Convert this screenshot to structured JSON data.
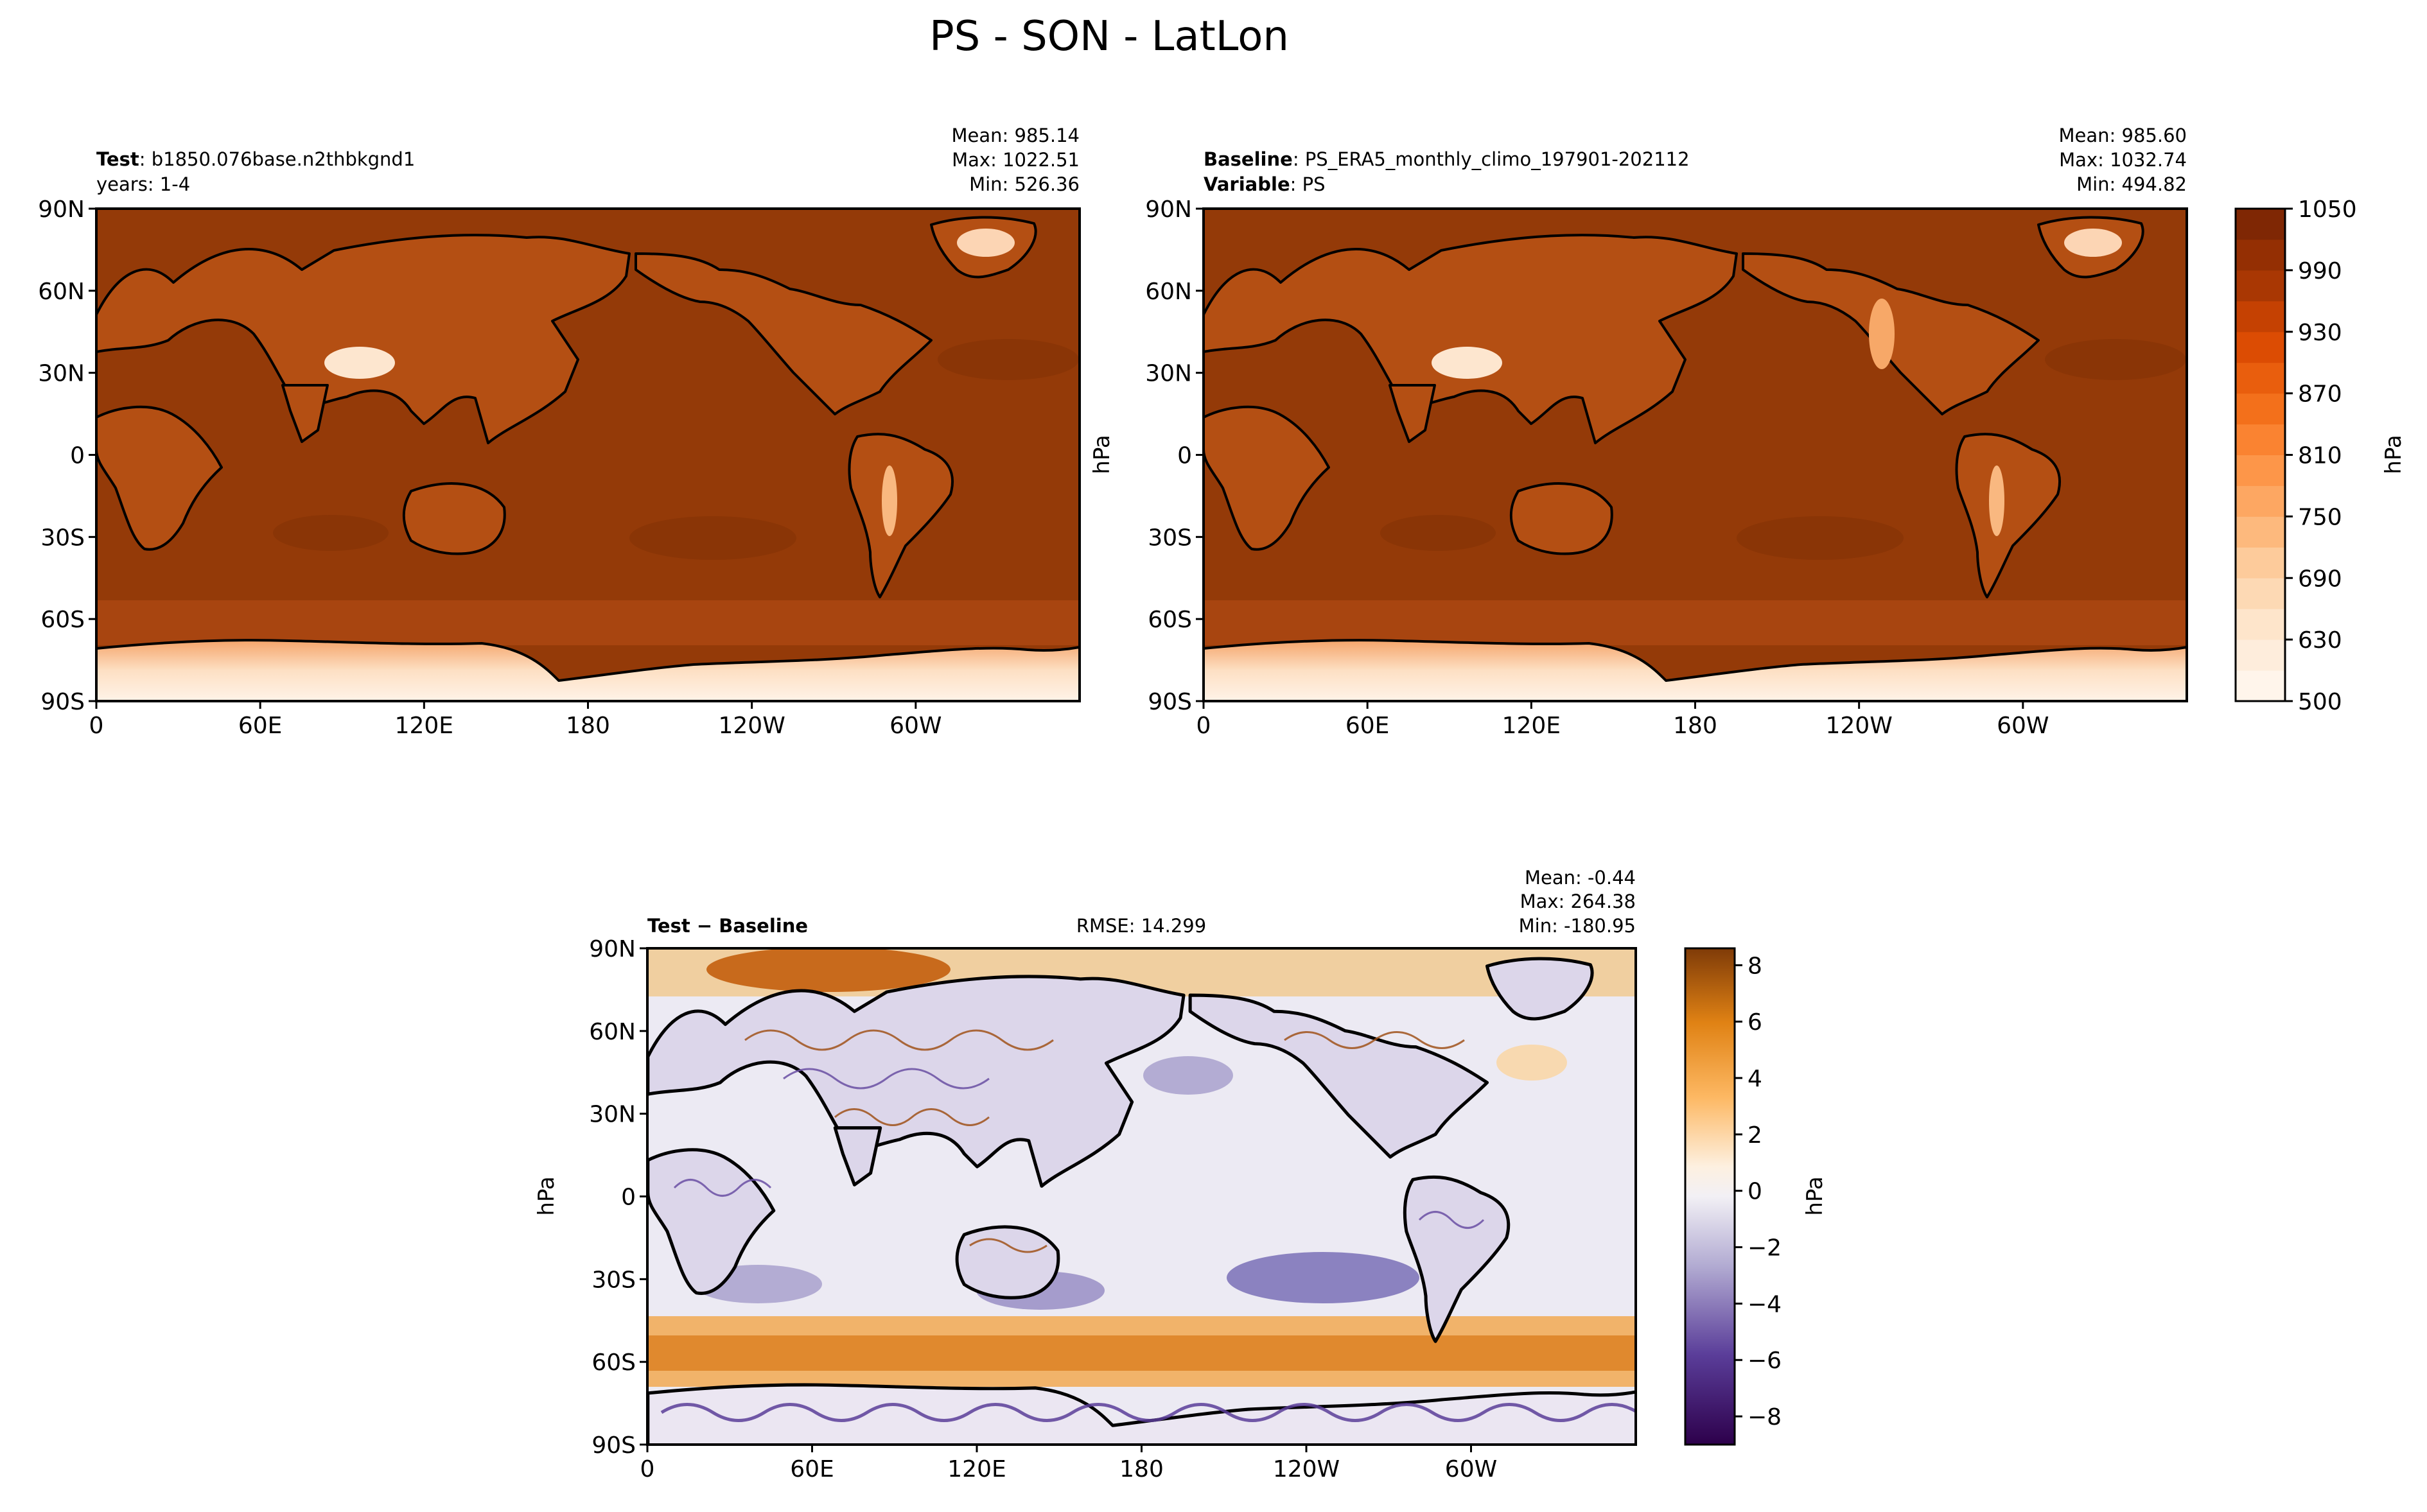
{
  "figure": {
    "title": "PS - SON - LatLon"
  },
  "chart_data": [
    {
      "type": "heatmap",
      "panel": "test",
      "label_key": "Test",
      "label_value": "b1850.076base.n2thbkgnd1",
      "label2_text": "years: 1-4",
      "stats": [
        "Mean: 985.14",
        "Max: 1022.51",
        "Min: 526.36"
      ],
      "variable": "PS",
      "units": "hPa",
      "season": "SON",
      "x_tick_labels": [
        "0",
        "60E",
        "120E",
        "180",
        "120W",
        "60W"
      ],
      "y_tick_labels": [
        "90N",
        "60N",
        "30N",
        "0",
        "30S",
        "60S",
        "90S"
      ],
      "lon_ticks": [
        0,
        60,
        120,
        180,
        240,
        300
      ],
      "lat_ticks": [
        90,
        60,
        30,
        0,
        -30,
        -60,
        -90
      ],
      "xlim": [
        0,
        360
      ],
      "ylim": [
        -90,
        90
      ],
      "mean": 985.14,
      "max": 1022.51,
      "min": 526.36,
      "colormap": "Oranges"
    },
    {
      "type": "heatmap",
      "panel": "baseline",
      "label_key": "Baseline",
      "label_value": "PS_ERA5_monthly_climo_197901-202112",
      "label2_key": "Variable",
      "label2_value": "PS",
      "stats": [
        "Mean: 985.60",
        "Max: 1032.74",
        "Min: 494.82"
      ],
      "ylabel": "hPa",
      "x_tick_labels": [
        "0",
        "60E",
        "120E",
        "180",
        "120W",
        "60W"
      ],
      "y_tick_labels": [
        "90N",
        "60N",
        "30N",
        "0",
        "30S",
        "60S",
        "90S"
      ],
      "lon_ticks": [
        0,
        60,
        120,
        180,
        240,
        300
      ],
      "lat_ticks": [
        90,
        60,
        30,
        0,
        -30,
        -60,
        -90
      ],
      "xlim": [
        0,
        360
      ],
      "ylim": [
        -90,
        90
      ],
      "mean": 985.6,
      "max": 1032.74,
      "min": 494.82,
      "colormap": "Oranges",
      "colorbar": {
        "label": "hPa",
        "ticks": [
          500,
          630,
          690,
          750,
          810,
          870,
          930,
          990,
          1050
        ],
        "levels": [
          500,
          600,
          630,
          660,
          690,
          720,
          750,
          780,
          810,
          840,
          870,
          900,
          930,
          960,
          990,
          1020,
          1050
        ]
      }
    },
    {
      "type": "heatmap",
      "panel": "difference",
      "label_key": "Test − Baseline",
      "rmse_text": "RMSE: 14.299",
      "stats": [
        "Mean: -0.44",
        "Max: 264.38",
        "Min: -180.95"
      ],
      "ylabel": "hPa",
      "x_tick_labels": [
        "0",
        "60E",
        "120E",
        "180",
        "120W",
        "60W"
      ],
      "y_tick_labels": [
        "90N",
        "60N",
        "30N",
        "0",
        "30S",
        "60S",
        "90S"
      ],
      "lon_ticks": [
        0,
        60,
        120,
        180,
        240,
        300
      ],
      "lat_ticks": [
        90,
        60,
        30,
        0,
        -30,
        -60,
        -90
      ],
      "xlim": [
        0,
        360
      ],
      "ylim": [
        -90,
        90
      ],
      "mean": -0.44,
      "max": 264.38,
      "min": -180.95,
      "rmse": 14.299,
      "colormap": "PuOr_r",
      "colorbar": {
        "label": "hPa",
        "ticks": [
          8,
          6,
          4,
          2,
          0,
          -2,
          -4,
          -6,
          -8
        ],
        "tick_labels": [
          "8",
          "6",
          "4",
          "2",
          "0",
          "−2",
          "−4",
          "−6",
          "−8"
        ],
        "range": [
          -9,
          8.6
        ]
      }
    }
  ],
  "colors": {
    "ocean_test": "#943a08",
    "ocean_diff": "#eceaf3",
    "coast": "#000000"
  }
}
